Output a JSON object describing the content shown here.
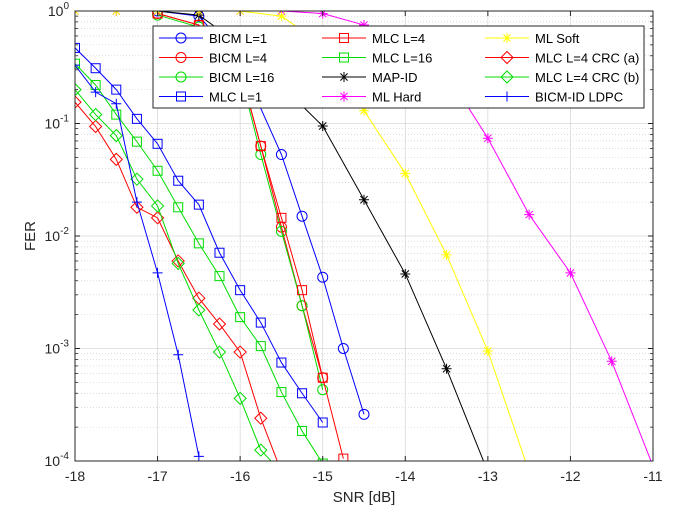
{
  "chart_data": {
    "type": "line",
    "xlabel": "SNR [dB]",
    "ylabel": "FER",
    "xlim": [
      -18,
      -11
    ],
    "ylim": [
      0.0001,
      1
    ],
    "yscale": "log",
    "grid": true,
    "minor_grid": true,
    "legend_position": "top-right",
    "legend_columns": 3,
    "x_ticks": [
      -18,
      -17,
      -16,
      -15,
      -14,
      -13,
      -12,
      -11
    ],
    "x_tick_labels": [
      "-18",
      "-17",
      "-16",
      "-15",
      "-14",
      "-13",
      "-12",
      "-11"
    ],
    "y_ticks": [
      0.0001,
      0.001,
      0.01,
      0.1,
      1
    ],
    "y_tick_labels": [
      {
        "base": "10",
        "exp": "-4"
      },
      {
        "base": "10",
        "exp": "-3"
      },
      {
        "base": "10",
        "exp": "-2"
      },
      {
        "base": "10",
        "exp": "-1"
      },
      {
        "base": "10",
        "exp": "0"
      }
    ],
    "series": [
      {
        "name": "BICM L=1",
        "color": "#0000ff",
        "marker": "circle",
        "x": [
          -17,
          -16.5,
          -16,
          -15.5,
          -15.25,
          -15,
          -14.75,
          -14.5
        ],
        "y": [
          1,
          0.9,
          0.35,
          0.053,
          0.015,
          0.0043,
          0.001,
          0.00026
        ]
      },
      {
        "name": "BICM L=4",
        "color": "#ff0000",
        "marker": "circle",
        "x": [
          -17,
          -16.5,
          -16,
          -15.75,
          -15.5,
          -15.25,
          -15
        ],
        "y": [
          0.95,
          0.75,
          0.3,
          0.063,
          0.012,
          0.0024,
          0.00055
        ]
      },
      {
        "name": "BICM L=16",
        "color": "#00dd00",
        "marker": "circle",
        "x": [
          -17,
          -16.5,
          -16,
          -15.75,
          -15.5,
          -15.25,
          -15
        ],
        "y": [
          0.92,
          0.72,
          0.28,
          0.053,
          0.011,
          0.0024,
          0.00043
        ]
      },
      {
        "name": "MLC L=1",
        "color": "#0000ff",
        "marker": "square",
        "x": [
          -18,
          -17.75,
          -17.5,
          -17.25,
          -17,
          -16.75,
          -16.5,
          -16.25,
          -16,
          -15.75,
          -15.5,
          -15.25,
          -15
        ],
        "y": [
          0.47,
          0.31,
          0.2,
          0.11,
          0.066,
          0.031,
          0.019,
          0.0071,
          0.0033,
          0.0017,
          0.00075,
          0.0004,
          0.00022
        ]
      },
      {
        "name": "MLC L=4",
        "color": "#ff0000",
        "marker": "square",
        "x": [
          -17,
          -16.5,
          -16,
          -15.75,
          -15.5,
          -15.25,
          -15,
          -14.75
        ],
        "y": [
          0.95,
          0.75,
          0.3,
          0.063,
          0.0145,
          0.0033,
          0.00055,
          0.000105
        ]
      },
      {
        "name": "MLC L=16",
        "color": "#00dd00",
        "marker": "square",
        "x": [
          -18,
          -17.75,
          -17.5,
          -17.25,
          -17,
          -16.75,
          -16.5,
          -16.25,
          -16,
          -15.75,
          -15.5,
          -15.25,
          -15
        ],
        "y": [
          0.34,
          0.22,
          0.12,
          0.069,
          0.038,
          0.018,
          0.0086,
          0.0044,
          0.0019,
          0.00105,
          0.00041,
          0.000185,
          9.5e-05
        ]
      },
      {
        "name": "MAP-ID",
        "color": "#000000",
        "marker": "asterisk",
        "x": [
          -17,
          -16.5,
          -16,
          -15,
          -14.5,
          -14,
          -13.5,
          -13
        ],
        "y": [
          1,
          0.92,
          0.5,
          0.095,
          0.021,
          0.0046,
          0.00066,
          8e-05
        ]
      },
      {
        "name": "ML Hard",
        "color": "#ff00ff",
        "marker": "asterisk",
        "x": [
          -18,
          -17.5,
          -17,
          -16.5,
          -16,
          -15.5,
          -15,
          -14.5,
          -14,
          -13.5,
          -13,
          -12.5,
          -12,
          -11.5,
          -11
        ],
        "y": [
          1,
          1,
          1,
          1,
          1,
          1,
          0.95,
          0.75,
          0.55,
          0.28,
          0.074,
          0.0155,
          0.0047,
          0.00077,
          9e-05
        ]
      },
      {
        "name": "ML Soft",
        "color": "#ffff00",
        "marker": "asterisk",
        "x": [
          -18,
          -17.5,
          -17,
          -16.5,
          -16,
          -15.5,
          -15,
          -14.5,
          -14,
          -13.5,
          -13,
          -12.5
        ],
        "y": [
          1,
          1,
          1,
          1,
          1,
          0.9,
          0.5,
          0.13,
          0.036,
          0.0068,
          0.00095,
          8e-05
        ]
      },
      {
        "name": "MLC L=4 CRC (a)",
        "color": "#ff0000",
        "marker": "diamond",
        "x": [
          -18,
          -17.75,
          -17.5,
          -17.25,
          -17,
          -16.75,
          -16.5,
          -16.25,
          -16,
          -15.75,
          -15.5
        ],
        "y": [
          0.155,
          0.094,
          0.048,
          0.018,
          0.0145,
          0.006,
          0.0028,
          0.00165,
          0.00093,
          0.00024,
          8e-05
        ]
      },
      {
        "name": "MLC L=4 CRC (b)",
        "color": "#00dd00",
        "marker": "diamond",
        "x": [
          -18,
          -17.75,
          -17.5,
          -17.25,
          -17,
          -16.75,
          -16.5,
          -16.25,
          -16,
          -15.75,
          -15.5
        ],
        "y": [
          0.2,
          0.12,
          0.078,
          0.032,
          0.0185,
          0.0057,
          0.0022,
          0.00093,
          0.00036,
          0.000125,
          8e-05
        ]
      },
      {
        "name": "BICM-ID LDPC",
        "color": "#0000ff",
        "marker": "plus",
        "x": [
          -18,
          -17.75,
          -17.5,
          -17.25,
          -17,
          -16.75,
          -16.5
        ],
        "y": [
          0.33,
          0.19,
          0.15,
          0.02,
          0.0047,
          0.00088,
          0.00011
        ]
      }
    ]
  }
}
